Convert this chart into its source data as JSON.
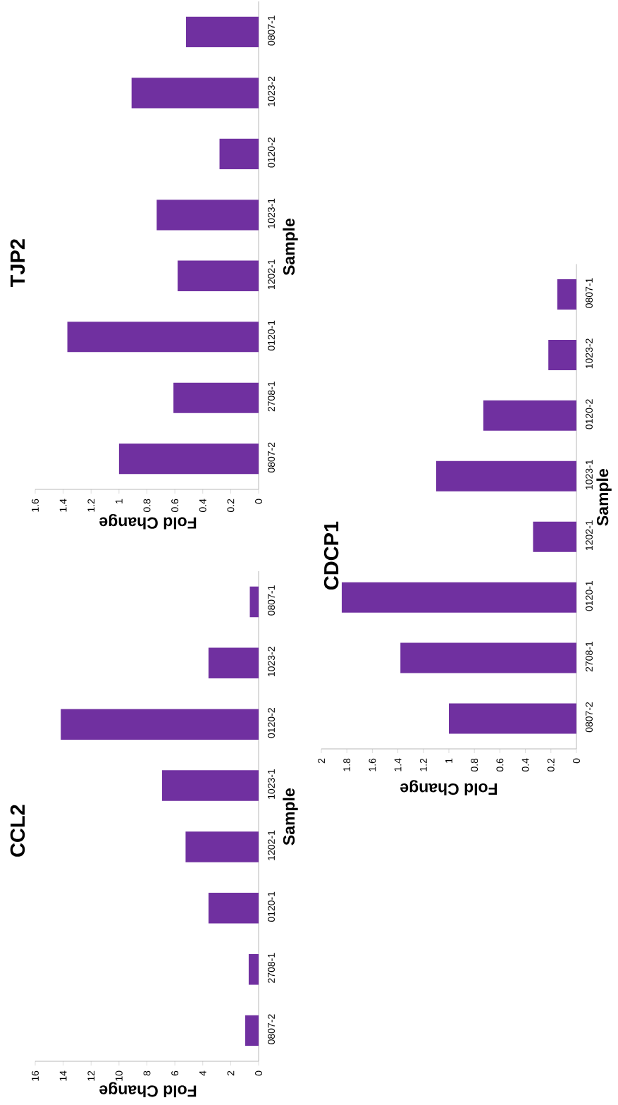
{
  "chart_data": [
    {
      "type": "bar",
      "orientation": "horizontal",
      "title": "CCL2",
      "xlabel": "Fold Change",
      "ylabel": "Sample",
      "color": "#7030a0",
      "categories": [
        "0807-1",
        "1023-2",
        "0120-2",
        "1023-1",
        "1202-1",
        "0120-1",
        "2708-1",
        "0807-2"
      ],
      "values": [
        0.63,
        3.59,
        14.17,
        6.92,
        5.23,
        3.59,
        0.71,
        0.96
      ],
      "xlim": [
        16,
        0
      ],
      "xticks": [
        16,
        14,
        12,
        10,
        8,
        6,
        4,
        2,
        0
      ]
    },
    {
      "type": "bar",
      "orientation": "horizontal",
      "title": "TJP2",
      "xlabel": "Fold Change",
      "ylabel": "Sample",
      "color": "#7030a0",
      "categories": [
        "0807-1",
        "1023-2",
        "0120-2",
        "1023-1",
        "1202-1",
        "0120-1",
        "2708-1",
        "0807-2"
      ],
      "values": [
        0.52,
        0.91,
        0.28,
        0.73,
        0.58,
        1.37,
        0.61,
        1.0
      ],
      "xlim": [
        1.6,
        0
      ],
      "xticks": [
        1.6,
        1.4,
        1.2,
        1,
        0.8,
        0.6,
        0.4,
        0.2,
        0
      ]
    },
    {
      "type": "bar",
      "orientation": "horizontal",
      "title": "CDCP1",
      "xlabel": "Fold Change",
      "ylabel": "Sample",
      "color": "#7030a0",
      "categories": [
        "0807-1",
        "1023-2",
        "0120-2",
        "1023-1",
        "1202-1",
        "0120-1",
        "2708-1",
        "0807-2"
      ],
      "values": [
        0.15,
        0.22,
        0.73,
        1.1,
        0.34,
        1.84,
        1.38,
        1.0
      ],
      "xlim": [
        2,
        0
      ],
      "xticks": [
        2,
        1.8,
        1.6,
        1.4,
        1.2,
        1,
        0.8,
        0.6,
        0.4,
        0.2,
        0
      ]
    }
  ]
}
